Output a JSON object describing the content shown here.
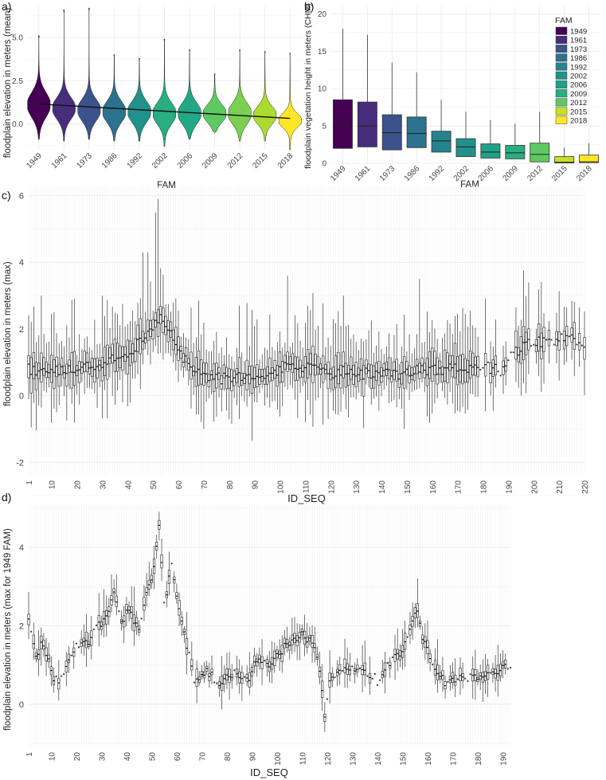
{
  "panels": {
    "a": {
      "letter": "a)",
      "chart_data": {
        "type": "violin",
        "ylabel": "floodplain elevation in meters (mean)",
        "xlabel": "FAM",
        "categories": [
          "1949",
          "1961",
          "1973",
          "1986",
          "1992",
          "2002",
          "2006",
          "2009",
          "2012",
          "2015",
          "2018"
        ],
        "colors": [
          "#440154",
          "#472d7b",
          "#3b528b",
          "#2c728e",
          "#21918c",
          "#28ae80",
          "#22a884",
          "#5ec962",
          "#7ad151",
          "#addc30",
          "#fde725"
        ],
        "yticks": [
          0.0,
          2.5,
          5.0
        ],
        "ytick_labels": [
          "0.0",
          "2.5",
          "5.0"
        ],
        "ylim": [
          -1.5,
          6.8
        ],
        "series": [
          {
            "cat": "1949",
            "min": -0.9,
            "max": 5.1,
            "center": 1.1,
            "spread": 0.7
          },
          {
            "cat": "1961",
            "min": -1.0,
            "max": 6.6,
            "center": 0.9,
            "spread": 0.6
          },
          {
            "cat": "1973",
            "min": -0.9,
            "max": 6.7,
            "center": 0.8,
            "spread": 0.6
          },
          {
            "cat": "1986",
            "min": -1.0,
            "max": 4.0,
            "center": 0.7,
            "spread": 0.6
          },
          {
            "cat": "1992",
            "min": -1.0,
            "max": 3.8,
            "center": 0.7,
            "spread": 0.6
          },
          {
            "cat": "2002",
            "min": -1.3,
            "max": 4.9,
            "center": 0.6,
            "spread": 0.6
          },
          {
            "cat": "2006",
            "min": -0.9,
            "max": 4.3,
            "center": 0.6,
            "spread": 0.6
          },
          {
            "cat": "2009",
            "min": -0.5,
            "max": 2.9,
            "center": 0.6,
            "spread": 0.5
          },
          {
            "cat": "2012",
            "min": -1.0,
            "max": 4.3,
            "center": 0.6,
            "spread": 0.6
          },
          {
            "cat": "2015",
            "min": -1.0,
            "max": 4.2,
            "center": 0.5,
            "spread": 0.5
          },
          {
            "cat": "2018",
            "min": -1.5,
            "max": 4.1,
            "center": 0.2,
            "spread": 0.4
          }
        ],
        "trend": {
          "start": 1.15,
          "end": 0.32
        }
      }
    },
    "b": {
      "letter": "b)",
      "chart_data": {
        "type": "box",
        "ylabel": "floodplain vegetation height in meters (CHM)",
        "xlabel": "FAM",
        "categories": [
          "1949",
          "1961",
          "1973",
          "1986",
          "1992",
          "2002",
          "2006",
          "2009",
          "2012",
          "2015",
          "2018"
        ],
        "colors": [
          "#440154",
          "#472d7b",
          "#3b528b",
          "#2c728e",
          "#26828e",
          "#21918c",
          "#1fa187",
          "#28ae80",
          "#5ec962",
          "#c8e020",
          "#fde725"
        ],
        "yticks": [
          0,
          5,
          10,
          15,
          20
        ],
        "ytick_labels": [
          "0",
          "5",
          "10",
          "15",
          "20"
        ],
        "ylim": [
          0,
          21
        ],
        "boxes": [
          {
            "cat": "1949",
            "lo": 0,
            "q1": 2.0,
            "med": 5.0,
            "q3": 8.5,
            "hi": 18.0
          },
          {
            "cat": "1961",
            "lo": 0,
            "q1": 2.2,
            "med": 5.0,
            "q3": 8.2,
            "hi": 17.2
          },
          {
            "cat": "1973",
            "lo": 0,
            "q1": 1.8,
            "med": 4.1,
            "q3": 6.5,
            "hi": 13.5
          },
          {
            "cat": "1986",
            "lo": 0,
            "q1": 2.1,
            "med": 4.0,
            "q3": 6.2,
            "hi": 12.2
          },
          {
            "cat": "1992",
            "lo": 0,
            "q1": 1.5,
            "med": 3.0,
            "q3": 4.3,
            "hi": 8.5
          },
          {
            "cat": "2002",
            "lo": 0,
            "q1": 0.9,
            "med": 2.2,
            "q3": 3.3,
            "hi": 6.9
          },
          {
            "cat": "2006",
            "lo": 0,
            "q1": 0.7,
            "med": 1.5,
            "q3": 2.6,
            "hi": 5.8
          },
          {
            "cat": "2009",
            "lo": 0,
            "q1": 0.6,
            "med": 1.4,
            "q3": 2.4,
            "hi": 5.3
          },
          {
            "cat": "2012",
            "lo": 0,
            "q1": 0.2,
            "med": 1.2,
            "q3": 2.7,
            "hi": 6.9
          },
          {
            "cat": "2015",
            "lo": 0,
            "q1": 0.05,
            "med": 0.15,
            "q3": 0.9,
            "hi": 2.1
          },
          {
            "cat": "2018",
            "lo": 0,
            "q1": 0.1,
            "med": 0.2,
            "q3": 1.1,
            "hi": 2.7
          }
        ],
        "legend": {
          "title": "FAM",
          "placement": "top-right",
          "entries": [
            "1949",
            "1961",
            "1973",
            "1986",
            "1992",
            "2002",
            "2006",
            "2009",
            "2012",
            "2015",
            "2018"
          ]
        }
      }
    },
    "c": {
      "letter": "c)",
      "chart_data": {
        "type": "box",
        "ylabel": "floodplain elevation in meters (max)",
        "xlabel": "ID_SEQ",
        "n": 220,
        "xticks": [
          1,
          10,
          20,
          30,
          40,
          50,
          60,
          70,
          80,
          90,
          100,
          110,
          120,
          130,
          140,
          150,
          160,
          170,
          180,
          190,
          200,
          210,
          220
        ],
        "yticks": [
          -2,
          0,
          2,
          4,
          6
        ],
        "ylim": [
          -2.4,
          6.3
        ],
        "profile": [
          [
            1,
            0.8
          ],
          [
            10,
            0.7
          ],
          [
            20,
            0.8
          ],
          [
            30,
            1.0
          ],
          [
            38,
            1.2
          ],
          [
            45,
            1.6
          ],
          [
            50,
            2.0
          ],
          [
            53,
            2.3
          ],
          [
            56,
            2.1
          ],
          [
            60,
            1.4
          ],
          [
            65,
            0.8
          ],
          [
            70,
            0.6
          ],
          [
            80,
            0.5
          ],
          [
            90,
            0.6
          ],
          [
            100,
            0.8
          ],
          [
            110,
            0.9
          ],
          [
            120,
            0.7
          ],
          [
            130,
            0.7
          ],
          [
            140,
            0.6
          ],
          [
            150,
            0.7
          ],
          [
            160,
            0.8
          ],
          [
            170,
            0.8
          ],
          [
            180,
            0.9
          ],
          [
            188,
            0.7
          ],
          [
            192,
            1.3
          ],
          [
            200,
            1.6
          ],
          [
            210,
            1.7
          ],
          [
            220,
            1.6
          ]
        ],
        "peaks": [
          [
            52,
            5.9
          ],
          [
            51,
            5.5
          ],
          [
            48,
            4.3
          ],
          [
            46,
            4.3
          ],
          [
            103,
            3.6
          ],
          [
            155,
            3.5
          ],
          [
            180,
            2.4
          ],
          [
            6,
            3.0
          ],
          [
            30,
            3.0
          ],
          [
            125,
            3.0
          ]
        ]
      }
    },
    "d": {
      "letter": "d)",
      "chart_data": {
        "type": "box",
        "ylabel": "floodplain elevation in meters (max for 1949 FAM)",
        "xlabel": "ID_SEQ",
        "n": 193,
        "xticks": [
          1,
          10,
          20,
          30,
          40,
          50,
          60,
          70,
          80,
          90,
          100,
          110,
          120,
          130,
          140,
          150,
          160,
          170,
          180,
          190
        ],
        "yticks": [
          0,
          2,
          4
        ],
        "ylim": [
          -1.1,
          5.1
        ],
        "profile": [
          [
            1,
            2.3
          ],
          [
            4,
            1.2
          ],
          [
            7,
            1.6
          ],
          [
            10,
            0.8
          ],
          [
            13,
            0.5
          ],
          [
            20,
            1.5
          ],
          [
            25,
            1.6
          ],
          [
            28,
            1.9
          ],
          [
            32,
            2.3
          ],
          [
            35,
            2.8
          ],
          [
            38,
            2.0
          ],
          [
            41,
            2.5
          ],
          [
            45,
            1.8
          ],
          [
            48,
            2.8
          ],
          [
            51,
            3.4
          ],
          [
            53,
            4.6
          ],
          [
            55,
            2.6
          ],
          [
            58,
            3.5
          ],
          [
            61,
            2.4
          ],
          [
            64,
            1.5
          ],
          [
            67,
            0.6
          ],
          [
            72,
            0.8
          ],
          [
            78,
            0.5
          ],
          [
            82,
            0.8
          ],
          [
            88,
            0.6
          ],
          [
            92,
            1.1
          ],
          [
            98,
            1.0
          ],
          [
            103,
            1.5
          ],
          [
            107,
            1.6
          ],
          [
            111,
            1.8
          ],
          [
            116,
            1.3
          ],
          [
            119,
            -0.3
          ],
          [
            121,
            0.5
          ],
          [
            125,
            0.9
          ],
          [
            130,
            0.9
          ],
          [
            135,
            0.9
          ],
          [
            140,
            0.6
          ],
          [
            145,
            1.1
          ],
          [
            150,
            1.4
          ],
          [
            153,
            2.0
          ],
          [
            156,
            2.3
          ],
          [
            159,
            1.5
          ],
          [
            163,
            0.9
          ],
          [
            168,
            0.5
          ],
          [
            172,
            0.6
          ],
          [
            176,
            0.7
          ],
          [
            180,
            0.6
          ],
          [
            184,
            0.7
          ],
          [
            188,
            0.9
          ],
          [
            192,
            1.0
          ]
        ]
      }
    }
  }
}
